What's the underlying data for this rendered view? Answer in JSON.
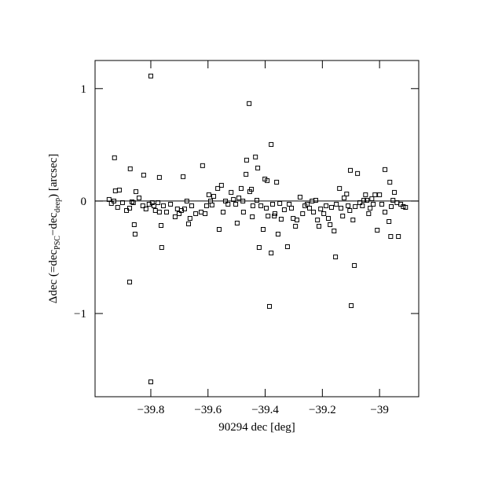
{
  "chart_data": {
    "type": "scatter",
    "x_label": "90294 dec [deg]",
    "y_label_parts": [
      "Δdec (=dec",
      "PSC",
      "−dec",
      "deep",
      ") [arcsec]"
    ],
    "xlim": [
      -39.995,
      -38.863
    ],
    "ylim": [
      -1.74,
      1.25
    ],
    "xticks": [
      {
        "value": -39.8,
        "label": "−39.8"
      },
      {
        "value": -39.6,
        "label": "−39.6"
      },
      {
        "value": -39.4,
        "label": "−39.4"
      },
      {
        "value": -39.2,
        "label": "−39.2"
      },
      {
        "value": -39,
        "label": "−39"
      }
    ],
    "yticks": [
      {
        "value": -1,
        "label": "−1"
      },
      0,
      1
    ],
    "hline": 0,
    "color": "#000000",
    "marker": "open-square",
    "x": [
      -39.946,
      -39.938,
      -39.929,
      -39.927,
      -39.924,
      -39.916,
      -39.91,
      -39.899,
      -39.885,
      -39.874,
      -39.872,
      -39.874,
      -39.866,
      -39.861,
      -39.858,
      -39.855,
      -39.852,
      -39.841,
      -39.828,
      -39.825,
      -39.817,
      -39.806,
      -39.8,
      -39.8,
      -39.795,
      -39.789,
      -39.784,
      -39.775,
      -39.77,
      -39.77,
      -39.764,
      -39.762,
      -39.756,
      -39.745,
      -39.731,
      -39.715,
      -39.707,
      -39.701,
      -39.693,
      -39.687,
      -39.682,
      -39.674,
      -39.668,
      -39.663,
      -39.657,
      -39.643,
      -39.624,
      -39.619,
      -39.61,
      -39.605,
      -39.597,
      -39.591,
      -39.586,
      -39.58,
      -39.566,
      -39.561,
      -39.553,
      -39.547,
      -39.539,
      -39.53,
      -39.519,
      -39.511,
      -39.503,
      -39.498,
      -39.492,
      -39.484,
      -39.478,
      -39.476,
      -39.467,
      -39.465,
      -39.456,
      -39.454,
      -39.448,
      -39.443,
      -39.445,
      -39.434,
      -39.429,
      -39.426,
      -39.421,
      -39.415,
      -39.407,
      -39.401,
      -39.396,
      -39.393,
      -39.39,
      -39.385,
      -39.379,
      -39.379,
      -39.374,
      -39.368,
      -39.366,
      -39.36,
      -39.355,
      -39.349,
      -39.344,
      -39.333,
      -39.322,
      -39.316,
      -39.308,
      -39.302,
      -39.294,
      -39.289,
      -39.278,
      -39.269,
      -39.261,
      -39.253,
      -39.245,
      -39.236,
      -39.231,
      -39.223,
      -39.217,
      -39.212,
      -39.206,
      -39.195,
      -39.187,
      -39.179,
      -39.173,
      -39.168,
      -39.159,
      -39.154,
      -39.151,
      -39.14,
      -39.135,
      -39.129,
      -39.124,
      -39.115,
      -39.11,
      -39.104,
      -39.102,
      -39.099,
      -39.093,
      -39.088,
      -39.085,
      -39.077,
      -39.069,
      -39.06,
      -39.055,
      -39.049,
      -39.044,
      -39.038,
      -39.033,
      -39.027,
      -39.022,
      -39.016,
      -39.008,
      -39.0,
      -38.992,
      -38.981,
      -38.981,
      -38.967,
      -38.964,
      -38.961,
      -38.959,
      -38.953,
      -38.948,
      -38.939,
      -38.934,
      -38.926,
      -38.917,
      -38.909
    ],
    "values": [
      0.014,
      -0.021,
      0,
      0.385,
      0.091,
      -0.056,
      0.098,
      -0.014,
      -0.084,
      -0.063,
      0.287,
      -0.72,
      -0.007,
      -0.014,
      -0.21,
      -0.294,
      0.084,
      0.028,
      -0.042,
      0.231,
      -0.07,
      -0.028,
      1.112,
      -1.608,
      -0.014,
      -0.042,
      -0.084,
      -0.014,
      -0.098,
      0.21,
      -0.217,
      -0.413,
      -0.042,
      -0.098,
      -0.028,
      -0.14,
      -0.07,
      -0.112,
      -0.084,
      0.217,
      -0.07,
      0,
      -0.203,
      -0.154,
      -0.042,
      -0.112,
      -0.098,
      0.315,
      -0.112,
      -0.042,
      0.056,
      0,
      -0.035,
      0.042,
      0.112,
      -0.252,
      0.14,
      -0.098,
      0,
      -0.028,
      0.077,
      0.014,
      -0.028,
      -0.196,
      0.028,
      0.112,
      0,
      -0.098,
      0.238,
      0.364,
      0.867,
      0.084,
      0.105,
      -0.042,
      -0.14,
      0.392,
      0.007,
      0.294,
      -0.413,
      -0.042,
      -0.252,
      0.196,
      -0.063,
      0.182,
      -0.133,
      -0.937,
      0.503,
      -0.462,
      -0.028,
      -0.133,
      -0.112,
      0.168,
      -0.294,
      -0.021,
      -0.161,
      -0.077,
      -0.406,
      -0.028,
      -0.063,
      -0.154,
      -0.224,
      -0.168,
      0.035,
      -0.112,
      -0.042,
      -0.028,
      -0.063,
      0,
      -0.098,
      0.007,
      -0.168,
      -0.224,
      -0.07,
      -0.112,
      -0.042,
      -0.154,
      -0.21,
      -0.056,
      -0.266,
      -0.497,
      -0.028,
      0.112,
      -0.063,
      -0.133,
      0.028,
      0.063,
      -0.042,
      -0.084,
      0.273,
      -0.93,
      -0.168,
      -0.573,
      -0.049,
      0.245,
      -0.014,
      -0.042,
      0.007,
      0.056,
      0.007,
      -0.112,
      -0.063,
      0.021,
      -0.028,
      0.056,
      -0.259,
      0.056,
      -0.028,
      -0.098,
      0.28,
      -0.182,
      0.168,
      -0.315,
      -0.049,
      0.007,
      0.077,
      -0.014,
      -0.315,
      -0.028,
      -0.049,
      -0.056
    ]
  }
}
